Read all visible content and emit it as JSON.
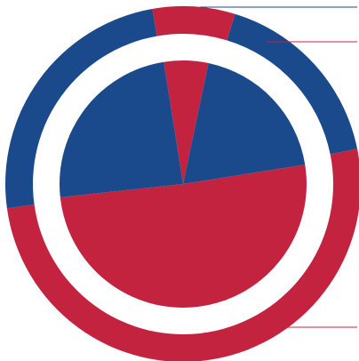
{
  "colors": {
    "blue": "#1b4a8c",
    "red": "#c42340",
    "background": "#ffffff"
  },
  "chart_data": [
    {
      "type": "pie",
      "variant": "donut-ring",
      "ring": "outer",
      "start_angle_deg": 260,
      "slices": [
        {
          "value": 7.5,
          "color": "#c42340"
        },
        {
          "value": 17.1,
          "color": "#1b4a8c"
        },
        {
          "value": 51.0,
          "color": "#c42340"
        },
        {
          "value": 24.4,
          "color": "#1b4a8c"
        }
      ]
    },
    {
      "type": "pie",
      "ring": "inner",
      "start_angle_deg": 261,
      "slices": [
        {
          "value": 5.8,
          "color": "#c42340"
        },
        {
          "value": 19.2,
          "color": "#1b4a8c"
        },
        {
          "value": 50.8,
          "color": "#c42340"
        },
        {
          "value": 24.2,
          "color": "#1b4a8c"
        }
      ]
    }
  ]
}
